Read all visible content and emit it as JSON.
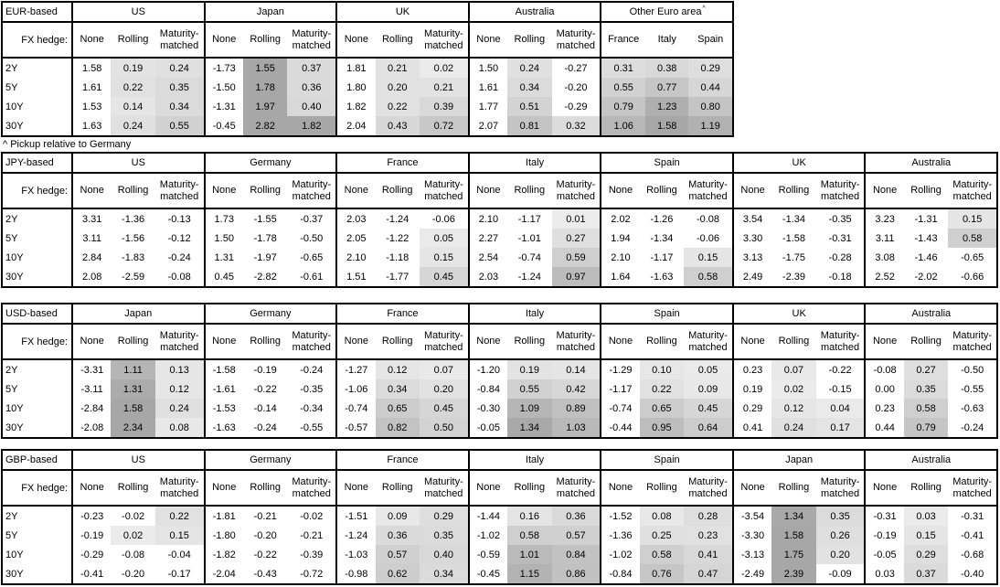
{
  "fx_hedge_label": "FX hedge:",
  "tenors": [
    "2Y",
    "5Y",
    "10Y",
    "30Y"
  ],
  "footnote": "^ Pickup relative to Germany",
  "heatmap": {
    "rule": "positive values in shaded columns get gray fill, darker for larger pickup; zero or negative stay white",
    "light_hex": "#ececec",
    "dark_hex": "#a7a7a7",
    "none_hex": "#ffffff"
  },
  "tables": [
    {
      "base_label": "EUR-based",
      "blocks": [
        {
          "country": "US",
          "cols": [
            "None",
            "Rolling",
            "Maturity-matched"
          ],
          "shade": [
            false,
            true,
            true
          ],
          "rows": [
            [
              1.58,
              0.19,
              0.24
            ],
            [
              1.61,
              0.22,
              0.35
            ],
            [
              1.53,
              0.14,
              0.34
            ],
            [
              1.63,
              0.24,
              0.55
            ]
          ]
        },
        {
          "country": "Japan",
          "cols": [
            "None",
            "Rolling",
            "Maturity-matched"
          ],
          "shade": [
            false,
            true,
            true
          ],
          "rows": [
            [
              -1.73,
              1.55,
              0.37
            ],
            [
              -1.5,
              1.78,
              0.36
            ],
            [
              -1.31,
              1.97,
              0.4
            ],
            [
              -0.45,
              2.82,
              1.82
            ]
          ]
        },
        {
          "country": "UK",
          "cols": [
            "None",
            "Rolling",
            "Maturity-matched"
          ],
          "shade": [
            false,
            true,
            true
          ],
          "rows": [
            [
              1.81,
              0.21,
              0.02
            ],
            [
              1.8,
              0.2,
              0.21
            ],
            [
              1.82,
              0.22,
              0.39
            ],
            [
              2.04,
              0.43,
              0.72
            ]
          ]
        },
        {
          "country": "Australia",
          "cols": [
            "None",
            "Rolling",
            "Maturity-matched"
          ],
          "shade": [
            false,
            true,
            true
          ],
          "rows": [
            [
              1.5,
              0.24,
              -0.27
            ],
            [
              1.61,
              0.34,
              -0.2
            ],
            [
              1.77,
              0.51,
              -0.29
            ],
            [
              2.07,
              0.81,
              0.32
            ]
          ]
        },
        {
          "country": "Other Euro area",
          "marker": "^",
          "cols": [
            "France",
            "Italy",
            "Spain"
          ],
          "shade": [
            true,
            true,
            true
          ],
          "rows": [
            [
              0.31,
              0.38,
              0.29
            ],
            [
              0.55,
              0.77,
              0.44
            ],
            [
              0.79,
              1.23,
              0.8
            ],
            [
              1.06,
              1.58,
              1.19
            ]
          ]
        }
      ]
    },
    {
      "base_label": "JPY-based",
      "blocks": [
        {
          "country": "US",
          "cols": [
            "None",
            "Rolling",
            "Maturity-matched"
          ],
          "shade": [
            false,
            true,
            true
          ],
          "rows": [
            [
              3.31,
              -1.36,
              -0.13
            ],
            [
              3.11,
              -1.56,
              -0.12
            ],
            [
              2.84,
              -1.83,
              -0.24
            ],
            [
              2.08,
              -2.59,
              -0.08
            ]
          ]
        },
        {
          "country": "Germany",
          "cols": [
            "None",
            "Rolling",
            "Maturity-matched"
          ],
          "shade": [
            false,
            true,
            true
          ],
          "rows": [
            [
              1.73,
              -1.55,
              -0.37
            ],
            [
              1.5,
              -1.78,
              -0.5
            ],
            [
              1.31,
              -1.97,
              -0.65
            ],
            [
              0.45,
              -2.82,
              -0.61
            ]
          ]
        },
        {
          "country": "France",
          "cols": [
            "None",
            "Rolling",
            "Maturity-matched"
          ],
          "shade": [
            false,
            true,
            true
          ],
          "rows": [
            [
              2.03,
              -1.24,
              -0.06
            ],
            [
              2.05,
              -1.22,
              0.05
            ],
            [
              2.1,
              -1.18,
              0.15
            ],
            [
              1.51,
              -1.77,
              0.45
            ]
          ]
        },
        {
          "country": "Italy",
          "cols": [
            "None",
            "Rolling",
            "Maturity-matched"
          ],
          "shade": [
            false,
            true,
            true
          ],
          "rows": [
            [
              2.1,
              -1.17,
              0.01
            ],
            [
              2.27,
              -1.01,
              0.27
            ],
            [
              2.54,
              -0.74,
              0.59
            ],
            [
              2.03,
              -1.24,
              0.97
            ]
          ]
        },
        {
          "country": "Spain",
          "cols": [
            "None",
            "Rolling",
            "Maturity-matched"
          ],
          "shade": [
            false,
            true,
            true
          ],
          "rows": [
            [
              2.02,
              -1.26,
              -0.08
            ],
            [
              1.94,
              -1.34,
              -0.06
            ],
            [
              2.1,
              -1.17,
              0.15
            ],
            [
              1.64,
              -1.63,
              0.58
            ]
          ]
        },
        {
          "country": "UK",
          "cols": [
            "None",
            "Rolling",
            "Maturity-matched"
          ],
          "shade": [
            false,
            true,
            true
          ],
          "rows": [
            [
              3.54,
              -1.34,
              -0.35
            ],
            [
              3.3,
              -1.58,
              -0.31
            ],
            [
              3.13,
              -1.75,
              -0.28
            ],
            [
              2.49,
              -2.39,
              -0.18
            ]
          ]
        },
        {
          "country": "Australia",
          "cols": [
            "None",
            "Rolling",
            "Maturity-matched"
          ],
          "shade": [
            false,
            true,
            true
          ],
          "rows": [
            [
              3.23,
              -1.31,
              0.15
            ],
            [
              3.11,
              -1.43,
              0.58
            ],
            [
              3.08,
              -1.46,
              -0.65
            ],
            [
              2.52,
              -2.02,
              -0.66
            ]
          ]
        }
      ]
    },
    {
      "base_label": "USD-based",
      "blocks": [
        {
          "country": "Japan",
          "cols": [
            "None",
            "Rolling",
            "Maturity-matched"
          ],
          "shade": [
            false,
            true,
            true
          ],
          "rows": [
            [
              -3.31,
              1.11,
              0.13
            ],
            [
              -3.11,
              1.31,
              0.12
            ],
            [
              -2.84,
              1.58,
              0.24
            ],
            [
              -2.08,
              2.34,
              0.08
            ]
          ]
        },
        {
          "country": "Germany",
          "cols": [
            "None",
            "Rolling",
            "Maturity-matched"
          ],
          "shade": [
            false,
            true,
            true
          ],
          "rows": [
            [
              -1.58,
              -0.19,
              -0.24
            ],
            [
              -1.61,
              -0.22,
              -0.35
            ],
            [
              -1.53,
              -0.14,
              -0.34
            ],
            [
              -1.63,
              -0.24,
              -0.55
            ]
          ]
        },
        {
          "country": "France",
          "cols": [
            "None",
            "Rolling",
            "Maturity-matched"
          ],
          "shade": [
            false,
            true,
            true
          ],
          "rows": [
            [
              -1.27,
              0.12,
              0.07
            ],
            [
              -1.06,
              0.34,
              0.2
            ],
            [
              -0.74,
              0.65,
              0.45
            ],
            [
              -0.57,
              0.82,
              0.5
            ]
          ]
        },
        {
          "country": "Italy",
          "cols": [
            "None",
            "Rolling",
            "Maturity-matched"
          ],
          "shade": [
            false,
            true,
            true
          ],
          "rows": [
            [
              -1.2,
              0.19,
              0.14
            ],
            [
              -0.84,
              0.55,
              0.42
            ],
            [
              -0.3,
              1.09,
              0.89
            ],
            [
              -0.05,
              1.34,
              1.03
            ]
          ]
        },
        {
          "country": "Spain",
          "cols": [
            "None",
            "Rolling",
            "Maturity-matched"
          ],
          "shade": [
            false,
            true,
            true
          ],
          "rows": [
            [
              -1.29,
              0.1,
              0.05
            ],
            [
              -1.17,
              0.22,
              0.09
            ],
            [
              -0.74,
              0.65,
              0.45
            ],
            [
              -0.44,
              0.95,
              0.64
            ]
          ]
        },
        {
          "country": "UK",
          "cols": [
            "None",
            "Rolling",
            "Maturity-matched"
          ],
          "shade": [
            false,
            true,
            true
          ],
          "rows": [
            [
              0.23,
              0.07,
              -0.22
            ],
            [
              0.19,
              0.02,
              -0.15
            ],
            [
              0.29,
              0.12,
              0.04
            ],
            [
              0.41,
              0.24,
              0.17
            ]
          ]
        },
        {
          "country": "Australia",
          "cols": [
            "None",
            "Rolling",
            "Maturity-matched"
          ],
          "shade": [
            false,
            true,
            true
          ],
          "rows": [
            [
              -0.08,
              0.27,
              -0.5
            ],
            [
              0.0,
              0.35,
              -0.55
            ],
            [
              0.23,
              0.58,
              -0.63
            ],
            [
              0.44,
              0.79,
              -0.24
            ]
          ]
        }
      ]
    },
    {
      "base_label": "GBP-based",
      "blocks": [
        {
          "country": "US",
          "cols": [
            "None",
            "Rolling",
            "Maturity-matched"
          ],
          "shade": [
            false,
            true,
            true
          ],
          "rows": [
            [
              -0.23,
              -0.02,
              0.22
            ],
            [
              -0.19,
              0.02,
              0.15
            ],
            [
              -0.29,
              -0.08,
              -0.04
            ],
            [
              -0.41,
              -0.2,
              -0.17
            ]
          ]
        },
        {
          "country": "Germany",
          "cols": [
            "None",
            "Rolling",
            "Maturity-matched"
          ],
          "shade": [
            false,
            true,
            true
          ],
          "rows": [
            [
              -1.81,
              -0.21,
              -0.02
            ],
            [
              -1.8,
              -0.2,
              -0.21
            ],
            [
              -1.82,
              -0.22,
              -0.39
            ],
            [
              -2.04,
              -0.43,
              -0.72
            ]
          ]
        },
        {
          "country": "France",
          "cols": [
            "None",
            "Rolling",
            "Maturity-matched"
          ],
          "shade": [
            false,
            true,
            true
          ],
          "rows": [
            [
              -1.51,
              0.09,
              0.29
            ],
            [
              -1.24,
              0.36,
              0.35
            ],
            [
              -1.03,
              0.57,
              0.4
            ],
            [
              -0.98,
              0.62,
              0.34
            ]
          ]
        },
        {
          "country": "Italy",
          "cols": [
            "None",
            "Rolling",
            "Maturity-matched"
          ],
          "shade": [
            false,
            true,
            true
          ],
          "rows": [
            [
              -1.44,
              0.16,
              0.36
            ],
            [
              -1.02,
              0.58,
              0.57
            ],
            [
              -0.59,
              1.01,
              0.84
            ],
            [
              -0.45,
              1.15,
              0.86
            ]
          ]
        },
        {
          "country": "Spain",
          "cols": [
            "None",
            "Rolling",
            "Maturity-matched"
          ],
          "shade": [
            false,
            true,
            true
          ],
          "rows": [
            [
              -1.52,
              0.08,
              0.28
            ],
            [
              -1.36,
              0.25,
              0.23
            ],
            [
              -1.02,
              0.58,
              0.41
            ],
            [
              -0.84,
              0.76,
              0.47
            ]
          ]
        },
        {
          "country": "Japan",
          "cols": [
            "None",
            "Rolling",
            "Maturity-matched"
          ],
          "shade": [
            false,
            true,
            true
          ],
          "rows": [
            [
              -3.54,
              1.34,
              0.35
            ],
            [
              -3.3,
              1.58,
              0.26
            ],
            [
              -3.13,
              1.75,
              0.2
            ],
            [
              -2.49,
              2.39,
              -0.09
            ]
          ]
        },
        {
          "country": "Australia",
          "cols": [
            "None",
            "Rolling",
            "Maturity-matched"
          ],
          "shade": [
            false,
            true,
            true
          ],
          "rows": [
            [
              -0.31,
              0.03,
              -0.31
            ],
            [
              -0.19,
              0.15,
              -0.41
            ],
            [
              -0.05,
              0.29,
              -0.68
            ],
            [
              0.03,
              0.37,
              -0.4
            ]
          ]
        }
      ]
    }
  ]
}
